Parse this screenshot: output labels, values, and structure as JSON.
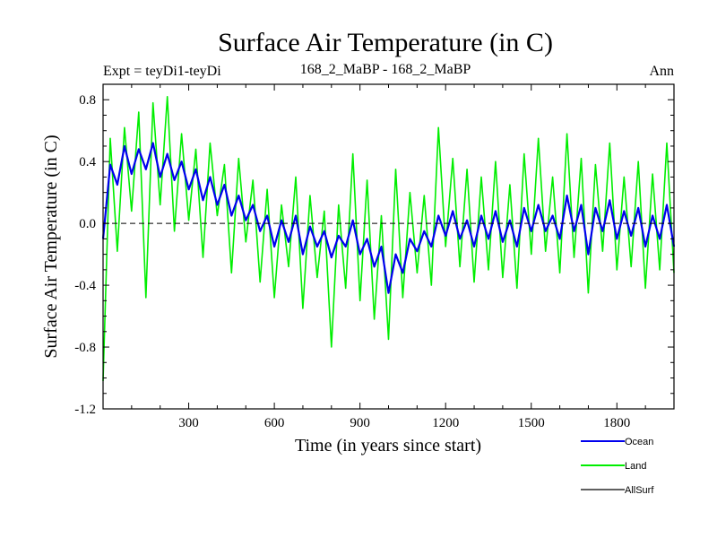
{
  "chart_data": {
    "type": "line",
    "title": "Surface Air Temperature (in C)",
    "subtitle_left": "Expt = teyDi1-teyDi",
    "subtitle_center": "168_2_MaBP - 168_2_MaBP",
    "subtitle_right": "Ann",
    "xlabel": "Time (in years since start)",
    "ylabel": "Surface Air Temperature (in C)",
    "xlim": [
      0,
      2000
    ],
    "ylim": [
      -1.2,
      0.9
    ],
    "xticks": [
      300,
      600,
      900,
      1200,
      1500,
      1800
    ],
    "xtick_labels": [
      "300",
      "600",
      "900",
      "1200",
      "1500",
      "1800"
    ],
    "yticks": [
      -1.2,
      -0.8,
      -0.4,
      0.0,
      0.4,
      0.8
    ],
    "ytick_labels": [
      "-1.2",
      "-0.8",
      "-0.4",
      "0.0",
      "0.4",
      "0.8"
    ],
    "zero_line": {
      "y": 0.0,
      "style": "dashed"
    },
    "legend_position": "bottom-right",
    "series": [
      {
        "name": "Land",
        "color": "#00ee00",
        "x": [
          0,
          25,
          50,
          75,
          100,
          125,
          150,
          175,
          200,
          225,
          250,
          275,
          300,
          325,
          350,
          375,
          400,
          425,
          450,
          475,
          500,
          525,
          550,
          575,
          600,
          625,
          650,
          675,
          700,
          725,
          750,
          775,
          800,
          825,
          850,
          875,
          900,
          925,
          950,
          975,
          1000,
          1025,
          1050,
          1075,
          1100,
          1125,
          1150,
          1175,
          1200,
          1225,
          1250,
          1275,
          1300,
          1325,
          1350,
          1375,
          1400,
          1425,
          1450,
          1475,
          1500,
          1525,
          1550,
          1575,
          1600,
          1625,
          1650,
          1675,
          1700,
          1725,
          1750,
          1775,
          1800,
          1825,
          1850,
          1875,
          1900,
          1925,
          1950,
          1975,
          2000
        ],
        "values": [
          -1.02,
          0.55,
          -0.18,
          0.62,
          0.08,
          0.72,
          -0.48,
          0.78,
          0.12,
          0.82,
          -0.05,
          0.58,
          0.02,
          0.48,
          -0.22,
          0.52,
          0.05,
          0.38,
          -0.32,
          0.42,
          -0.12,
          0.28,
          -0.38,
          0.22,
          -0.48,
          0.12,
          -0.28,
          0.3,
          -0.55,
          0.18,
          -0.35,
          0.08,
          -0.8,
          0.12,
          -0.42,
          0.45,
          -0.5,
          0.28,
          -0.62,
          0.05,
          -0.75,
          0.35,
          -0.48,
          0.2,
          -0.32,
          0.18,
          -0.4,
          0.62,
          -0.15,
          0.42,
          -0.28,
          0.35,
          -0.38,
          0.3,
          -0.3,
          0.4,
          -0.35,
          0.25,
          -0.42,
          0.45,
          -0.2,
          0.55,
          -0.18,
          0.3,
          -0.32,
          0.58,
          -0.22,
          0.42,
          -0.45,
          0.38,
          -0.18,
          0.52,
          -0.3,
          0.3,
          -0.28,
          0.4,
          -0.42,
          0.32,
          -0.3,
          0.52,
          -0.32
        ]
      },
      {
        "name": "Ocean",
        "color": "#0000ee",
        "x": [
          0,
          25,
          50,
          75,
          100,
          125,
          150,
          175,
          200,
          225,
          250,
          275,
          300,
          325,
          350,
          375,
          400,
          425,
          450,
          475,
          500,
          525,
          550,
          575,
          600,
          625,
          650,
          675,
          700,
          725,
          750,
          775,
          800,
          825,
          850,
          875,
          900,
          925,
          950,
          975,
          1000,
          1025,
          1050,
          1075,
          1100,
          1125,
          1150,
          1175,
          1200,
          1225,
          1250,
          1275,
          1300,
          1325,
          1350,
          1375,
          1400,
          1425,
          1450,
          1475,
          1500,
          1525,
          1550,
          1575,
          1600,
          1625,
          1650,
          1675,
          1700,
          1725,
          1750,
          1775,
          1800,
          1825,
          1850,
          1875,
          1900,
          1925,
          1950,
          1975,
          2000
        ],
        "values": [
          -0.1,
          0.38,
          0.25,
          0.5,
          0.32,
          0.48,
          0.35,
          0.52,
          0.3,
          0.45,
          0.28,
          0.4,
          0.22,
          0.35,
          0.15,
          0.3,
          0.12,
          0.25,
          0.05,
          0.18,
          0.02,
          0.12,
          -0.05,
          0.05,
          -0.15,
          0.02,
          -0.12,
          0.05,
          -0.2,
          -0.02,
          -0.15,
          -0.05,
          -0.22,
          -0.08,
          -0.15,
          0.02,
          -0.2,
          -0.1,
          -0.28,
          -0.15,
          -0.45,
          -0.2,
          -0.32,
          -0.1,
          -0.18,
          -0.05,
          -0.15,
          0.05,
          -0.08,
          0.08,
          -0.1,
          0.02,
          -0.15,
          0.05,
          -0.1,
          0.08,
          -0.12,
          0.02,
          -0.15,
          0.1,
          -0.05,
          0.12,
          -0.05,
          0.05,
          -0.1,
          0.18,
          -0.05,
          0.12,
          -0.2,
          0.1,
          -0.05,
          0.15,
          -0.1,
          0.08,
          -0.08,
          0.1,
          -0.15,
          0.05,
          -0.1,
          0.12,
          -0.15
        ]
      },
      {
        "name": "AllSurf",
        "color": "#000000",
        "x": [],
        "values": []
      }
    ]
  }
}
